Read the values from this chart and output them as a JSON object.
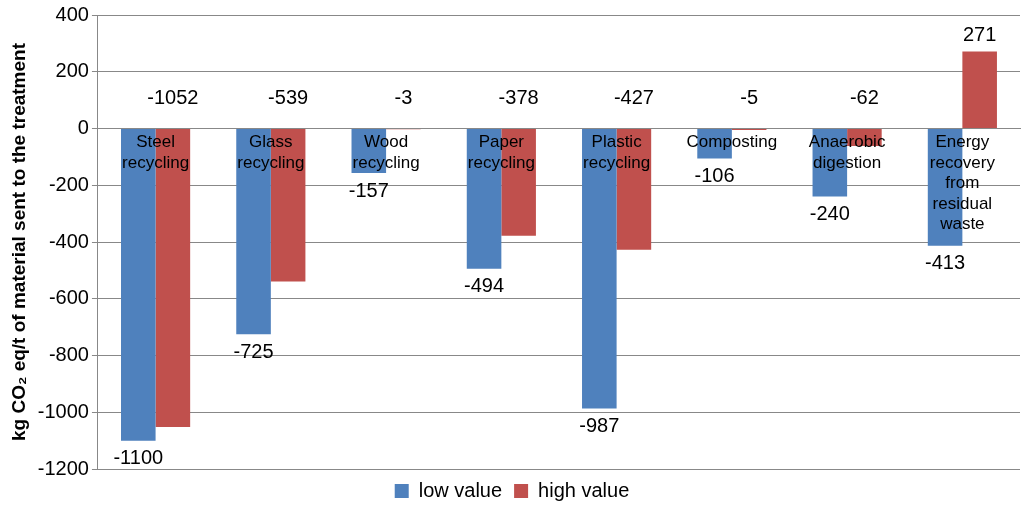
{
  "chart_data": {
    "type": "bar",
    "ylabel": "kg CO₂ eq/t of material sent to the treatment",
    "categories": [
      "Steel recycling",
      "Glass recycling",
      "Wood recycling",
      "Paper recycling",
      "Plastic recycling",
      "Composting",
      "Anaerobic digestion",
      "Energy recovery from residual waste"
    ],
    "series": [
      {
        "name": "low value",
        "color": "#4f81bd",
        "values": [
          -1100,
          -725,
          -157,
          -494,
          -987,
          -106,
          -240,
          -413
        ]
      },
      {
        "name": "high value",
        "color": "#c0504d",
        "values": [
          -1052,
          -539,
          -3,
          -378,
          -427,
          -5,
          -62,
          271
        ]
      }
    ],
    "ylim": [
      -1200,
      400
    ],
    "yticks": [
      -1200,
      -1000,
      -800,
      -600,
      -400,
      -200,
      0,
      200,
      400
    ],
    "grid": "y",
    "legend": "bottom",
    "data_labels": true
  }
}
